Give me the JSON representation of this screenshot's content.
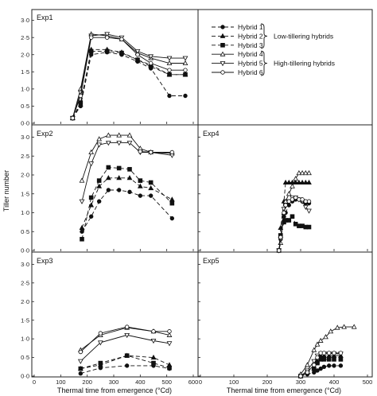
{
  "chart_data": {
    "type": "line",
    "ylabel": "Tiller number",
    "xlabel": "Thermal time from emergence (°Cd)",
    "x_ticks": [
      "0",
      "100",
      "200",
      "300",
      "400",
      "500",
      "600"
    ],
    "x_ticks_right": [
      "0",
      "100",
      "200",
      "300",
      "400",
      "500"
    ],
    "y_ticks": [
      "0·0",
      "0·5",
      "1·0",
      "1·5",
      "2·0",
      "2·5",
      "3·0"
    ],
    "xlim": [
      0,
      600
    ],
    "xlim_right": [
      0,
      500
    ],
    "ylim": [
      0,
      3.2
    ],
    "legend": {
      "entries": [
        "Hybrid 1",
        "Hybrid 2",
        "Hybrid 3",
        "Hybrid 4",
        "Hybrid 5",
        "Hybrid 6"
      ],
      "group_low": "Low-tillering hybrids",
      "group_high": "High-tillering hybrids"
    },
    "panels": [
      {
        "label": "Exp1",
        "series": [
          {
            "name": "Hybrid 1",
            "x": [
              145,
              175,
              215,
              275,
              330,
              390,
              440,
              510,
              570
            ],
            "y": [
              0.15,
              0.5,
              2.0,
              2.07,
              2.0,
              1.8,
              1.6,
              0.8,
              0.8
            ]
          },
          {
            "name": "Hybrid 2",
            "x": [
              145,
              175,
              215,
              275,
              330,
              390,
              440,
              510,
              570
            ],
            "y": [
              0.15,
              0.55,
              2.15,
              2.15,
              2.07,
              1.85,
              1.7,
              1.42,
              1.42
            ]
          },
          {
            "name": "Hybrid 3",
            "x": [
              145,
              175,
              215,
              275,
              330,
              390,
              440,
              510,
              570
            ],
            "y": [
              0.15,
              0.6,
              2.1,
              2.1,
              2.05,
              1.85,
              1.65,
              1.42,
              1.42
            ]
          },
          {
            "name": "Hybrid 4",
            "x": [
              145,
              175,
              215,
              275,
              330,
              390,
              440,
              510,
              570
            ],
            "y": [
              0.15,
              1.0,
              2.6,
              2.55,
              2.45,
              2.05,
              1.9,
              1.75,
              1.75
            ]
          },
          {
            "name": "Hybrid 5",
            "x": [
              145,
              175,
              215,
              275,
              330,
              390,
              440,
              510,
              570
            ],
            "y": [
              0.15,
              0.9,
              2.55,
              2.6,
              2.5,
              2.1,
              1.95,
              1.9,
              1.9
            ]
          },
          {
            "name": "Hybrid 6",
            "x": [
              145,
              175,
              215,
              275,
              330,
              390,
              440,
              510,
              570
            ],
            "y": [
              0.15,
              0.8,
              2.5,
              2.5,
              2.45,
              2.0,
              1.75,
              1.55,
              1.55
            ]
          }
        ]
      },
      {
        "label": "Exp2",
        "series": [
          {
            "name": "Hybrid 1",
            "x": [
              180,
              215,
              245,
              280,
              320,
              360,
              400,
              440,
              520
            ],
            "y": [
              0.5,
              0.9,
              1.3,
              1.6,
              1.6,
              1.55,
              1.45,
              1.45,
              0.85
            ]
          },
          {
            "name": "Hybrid 2",
            "x": [
              180,
              215,
              245,
              280,
              320,
              360,
              400,
              440,
              520
            ],
            "y": [
              0.6,
              1.2,
              1.7,
              1.92,
              1.92,
              1.92,
              1.7,
              1.65,
              1.35
            ]
          },
          {
            "name": "Hybrid 3",
            "x": [
              180,
              215,
              245,
              280,
              320,
              360,
              400,
              440,
              520
            ],
            "y": [
              0.3,
              1.4,
              1.85,
              2.2,
              2.18,
              2.15,
              1.85,
              1.8,
              1.25
            ]
          },
          {
            "name": "Hybrid 4",
            "x": [
              180,
              215,
              245,
              280,
              320,
              360,
              400,
              440,
              520
            ],
            "y": [
              1.85,
              2.6,
              2.95,
              3.05,
              3.05,
              3.05,
              2.7,
              2.6,
              2.57
            ]
          },
          {
            "name": "Hybrid 5",
            "x": [
              180,
              215,
              245,
              280,
              320,
              360,
              400,
              440,
              520
            ],
            "y": [
              1.3,
              2.3,
              2.8,
              2.85,
              2.85,
              2.85,
              2.6,
              2.6,
              2.52
            ]
          },
          {
            "name": "Hybrid 6",
            "x": [
              400,
              440,
              520
            ],
            "y": [
              2.62,
              2.6,
              2.6
            ]
          }
        ]
      },
      {
        "label": "Exp4",
        "series": [
          {
            "name": "Hybrid 1",
            "x": [
              235,
              240,
              250,
              255,
              265,
              275,
              285,
              295,
              305,
              315,
              325
            ],
            "y": [
              0.0,
              0.3,
              0.9,
              1.0,
              1.2,
              1.3,
              1.35,
              1.35,
              1.3,
              1.25,
              1.25
            ]
          },
          {
            "name": "Hybrid 2",
            "x": [
              235,
              240,
              250,
              255,
              265,
              275,
              285,
              295,
              305,
              315,
              325
            ],
            "y": [
              0.0,
              0.6,
              1.3,
              1.8,
              1.8,
              1.8,
              1.8,
              1.8,
              1.8,
              1.8,
              1.8
            ]
          },
          {
            "name": "Hybrid 3",
            "x": [
              235,
              240,
              250,
              255,
              265,
              275,
              285,
              295,
              305,
              315,
              325
            ],
            "y": [
              0.0,
              0.4,
              0.75,
              0.8,
              0.8,
              0.9,
              0.7,
              0.65,
              0.65,
              0.62,
              0.62
            ]
          },
          {
            "name": "Hybrid 4",
            "x": [
              235,
              240,
              250,
              255,
              265,
              275,
              285,
              295,
              305,
              315,
              325
            ],
            "y": [
              0.0,
              0.2,
              1.0,
              1.3,
              1.5,
              1.7,
              1.9,
              2.05,
              2.05,
              2.05,
              2.05
            ]
          },
          {
            "name": "Hybrid 5",
            "x": [
              235,
              240,
              250,
              255,
              265,
              275,
              285,
              295,
              305,
              315,
              325
            ],
            "y": [
              0.0,
              0.3,
              1.1,
              1.2,
              1.3,
              1.4,
              1.4,
              1.35,
              1.3,
              1.15,
              1.05
            ]
          },
          {
            "name": "Hybrid 6",
            "x": [
              235,
              240,
              250,
              255,
              265,
              275,
              285,
              295,
              305,
              315,
              325
            ],
            "y": [
              0.0,
              0.35,
              1.0,
              1.2,
              1.3,
              1.35,
              1.4,
              1.35,
              1.35,
              1.3,
              1.3
            ]
          }
        ]
      },
      {
        "label": "Exp3",
        "series": [
          {
            "name": "Hybrid 1",
            "x": [
              175,
              250,
              350,
              450,
              510
            ],
            "y": [
              0.07,
              0.22,
              0.28,
              0.28,
              0.2
            ]
          },
          {
            "name": "Hybrid 2",
            "x": [
              175,
              250,
              350,
              450,
              510
            ],
            "y": [
              0.2,
              0.3,
              0.55,
              0.5,
              0.3
            ]
          },
          {
            "name": "Hybrid 3",
            "x": [
              175,
              250,
              350,
              450,
              510
            ],
            "y": [
              0.2,
              0.35,
              0.55,
              0.35,
              0.22
            ]
          },
          {
            "name": "Hybrid 4",
            "x": [
              175,
              250,
              350,
              450,
              510
            ],
            "y": [
              0.7,
              1.1,
              1.3,
              1.2,
              1.1
            ]
          },
          {
            "name": "Hybrid 5",
            "x": [
              175,
              250,
              350,
              450,
              510
            ],
            "y": [
              0.4,
              0.9,
              1.1,
              0.95,
              0.88
            ]
          },
          {
            "name": "Hybrid 6",
            "x": [
              175,
              250,
              350,
              450,
              510
            ],
            "y": [
              0.65,
              1.15,
              1.32,
              1.2,
              1.2
            ]
          }
        ]
      },
      {
        "label": "Exp5",
        "series": [
          {
            "name": "Hybrid 1",
            "x": [
              300,
              320,
              340,
              350,
              360,
              370,
              385,
              400,
              420
            ],
            "y": [
              0.0,
              0.05,
              0.1,
              0.15,
              0.2,
              0.25,
              0.28,
              0.28,
              0.28
            ]
          },
          {
            "name": "Hybrid 2",
            "x": [
              300,
              320,
              340,
              350,
              360,
              370,
              385,
              400,
              420
            ],
            "y": [
              0.0,
              0.1,
              0.2,
              0.4,
              0.55,
              0.55,
              0.55,
              0.55,
              0.55
            ]
          },
          {
            "name": "Hybrid 3",
            "x": [
              300,
              320,
              340,
              350,
              360,
              370,
              385,
              400,
              420
            ],
            "y": [
              0.0,
              0.1,
              0.2,
              0.35,
              0.45,
              0.45,
              0.45,
              0.45,
              0.45
            ]
          },
          {
            "name": "Hybrid 4",
            "x": [
              300,
              320,
              340,
              350,
              360,
              375,
              390,
              410,
              430,
              460
            ],
            "y": [
              0.05,
              0.3,
              0.7,
              0.85,
              0.95,
              1.05,
              1.2,
              1.3,
              1.32,
              1.32
            ]
          },
          {
            "name": "Hybrid 5",
            "x": [
              300,
              320,
              340,
              350,
              360,
              370,
              385,
              400,
              420
            ],
            "y": [
              0.0,
              0.15,
              0.4,
              0.55,
              0.6,
              0.6,
              0.6,
              0.6,
              0.6
            ]
          },
          {
            "name": "Hybrid 6",
            "x": [
              300,
              320,
              340,
              350,
              360,
              370,
              385,
              400,
              420
            ],
            "y": [
              0.0,
              0.1,
              0.3,
              0.5,
              0.62,
              0.62,
              0.62,
              0.62,
              0.62
            ]
          }
        ]
      }
    ]
  }
}
